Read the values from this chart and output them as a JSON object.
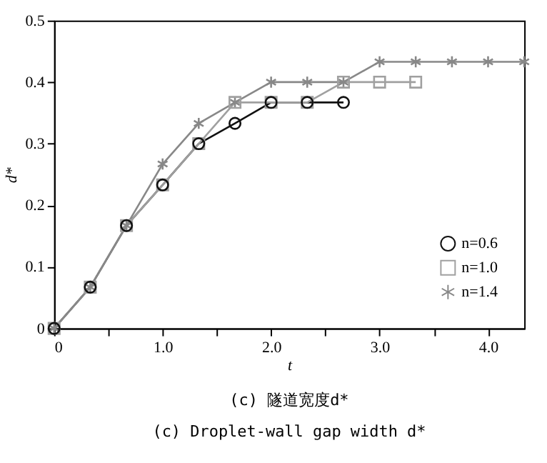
{
  "chart_data": {
    "type": "line",
    "xlabel": "t",
    "ylabel": "d*",
    "annotations": [
      "(c) 隧道宽度d*",
      "(c) Droplet-wall gap width d*"
    ],
    "xlim": [
      0,
      4.333
    ],
    "ylim": [
      0,
      0.5
    ],
    "xticks": [
      0,
      {
        "value": 0.5,
        "label": null
      },
      {
        "value": 1,
        "label": "1.0"
      },
      {
        "value": 1.5,
        "label": null
      },
      {
        "value": 2,
        "label": "2.0"
      },
      {
        "value": 2.5,
        "label": null
      },
      {
        "value": 3,
        "label": "3.0"
      },
      {
        "value": 3.5,
        "label": null
      },
      {
        "value": 4,
        "label": "4.0"
      }
    ],
    "yticks": [
      0,
      0.1,
      0.2,
      0.3,
      0.4,
      0.5
    ],
    "grid": false,
    "legend": "bottom right",
    "line_style": "solid",
    "series": [
      {
        "name": "n=0.6",
        "color": "#111111",
        "marker": "circle",
        "x": [
          0,
          0.333,
          0.667,
          1,
          1.333,
          1.667,
          2,
          2.333,
          2.667
        ],
        "values": [
          0,
          0.067,
          0.167,
          0.233,
          0.3,
          0.333,
          0.367,
          0.367,
          0.367
        ]
      },
      {
        "name": "n=1.0",
        "color": "#a0a0a0",
        "marker": "square",
        "x": [
          0,
          0.333,
          0.667,
          1,
          1.333,
          1.667,
          2,
          2.333,
          2.667,
          3,
          3.333
        ],
        "values": [
          0,
          0.067,
          0.167,
          0.233,
          0.3,
          0.367,
          0.367,
          0.367,
          0.4,
          0.4,
          0.4
        ]
      },
      {
        "name": "n=1.4",
        "color": "#888888",
        "marker": "cross",
        "x": [
          0,
          0.333,
          0.667,
          1,
          1.333,
          1.667,
          2,
          2.333,
          2.667,
          3,
          3.333,
          3.667,
          4,
          4.333
        ],
        "values": [
          0,
          0.067,
          0.167,
          0.267,
          0.333,
          0.367,
          0.4,
          0.4,
          0.4,
          0.433,
          0.433,
          0.433,
          0.433,
          0.433
        ]
      }
    ]
  }
}
